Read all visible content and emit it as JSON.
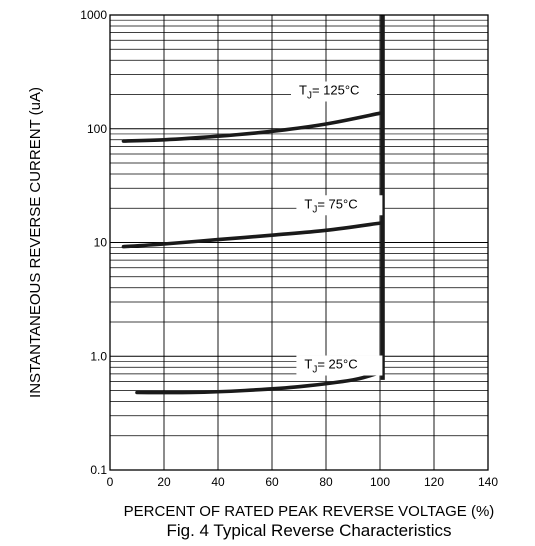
{
  "chart_data": {
    "type": "line",
    "title": "",
    "caption": "Fig. 4  Typical Reverse Characteristics",
    "xlabel": "PERCENT OF RATED PEAK REVERSE VOLTAGE (%)",
    "ylabel": "INSTANTANEOUS REVERSE CURRENT (uA)",
    "x_scale": "linear",
    "y_scale": "log",
    "xlim": [
      0,
      140
    ],
    "ylim": [
      0.1,
      1000
    ],
    "x_ticks": [
      "0",
      "20",
      "40",
      "60",
      "80",
      "100",
      "120",
      "140"
    ],
    "y_ticks": [
      "0.1",
      "1.0",
      "10",
      "100",
      "1000"
    ],
    "grid": true,
    "breakdown_line_x": 101,
    "series": [
      {
        "name": "TJ= 125°C",
        "label_main": "T",
        "label_sub": "J",
        "label_rest": "= 125°C",
        "label_pos": [
          70,
          200
        ],
        "x": [
          5,
          20,
          40,
          60,
          80,
          100
        ],
        "y": [
          78,
          80,
          86,
          95,
          110,
          137
        ]
      },
      {
        "name": "TJ= 75°C",
        "label_main": "T",
        "label_sub": "J",
        "label_rest": "= 75°C",
        "label_pos": [
          72,
          20
        ],
        "x": [
          5,
          20,
          40,
          60,
          80,
          100
        ],
        "y": [
          9.2,
          9.7,
          10.6,
          11.6,
          12.8,
          14.8
        ]
      },
      {
        "name": "TJ= 25°C",
        "label_main": "T",
        "label_sub": "J",
        "label_rest": "= 25°C",
        "label_pos": [
          72,
          0.78
        ],
        "x": [
          10,
          30,
          50,
          70,
          90,
          100
        ],
        "y": [
          0.48,
          0.48,
          0.5,
          0.54,
          0.62,
          0.72
        ]
      }
    ]
  }
}
